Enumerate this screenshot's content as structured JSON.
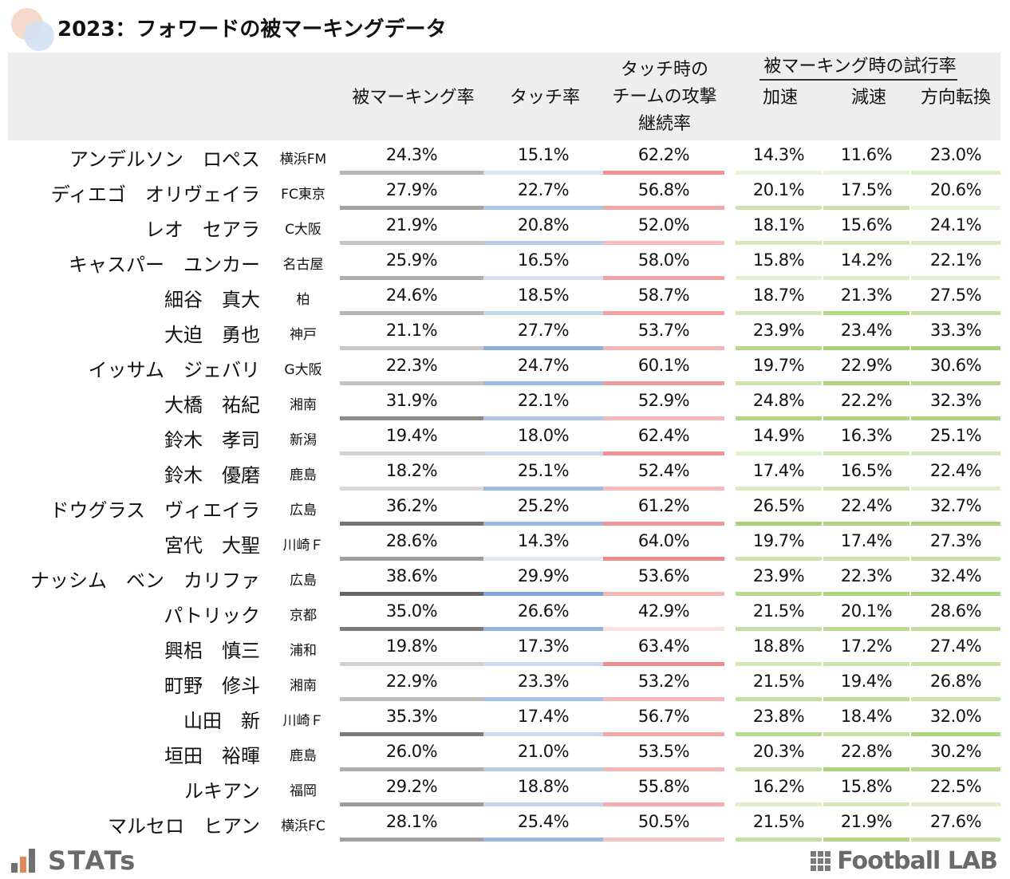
{
  "title": "2023：フォワードの被マーキングデータ",
  "headers": {
    "marked_rate": "被マーキング率",
    "touch_rate": "タッチ率",
    "continuation": [
      "タッチ時の",
      "チームの攻撃",
      "継続率"
    ],
    "group_label": "被マーキング時の試行率",
    "accel": "加速",
    "decel": "減速",
    "turn": "方向転換"
  },
  "colors": {
    "marked": "#666666",
    "touch": "#7ea6d8",
    "continuation": "#ef8a8a",
    "attempt": "#a9d177",
    "header_bg": "#eeeeee"
  },
  "chart_data": {
    "type": "table",
    "title": "2023：フォワードの被マーキングデータ",
    "columns": [
      "被マーキング率",
      "タッチ率",
      "タッチ時のチームの攻撃継続率",
      "加速",
      "減速",
      "方向転換"
    ],
    "rows": [
      {
        "name": "アンデルソン　ロペス",
        "team": "横浜FM",
        "values": [
          "24.3%",
          "15.1%",
          "62.2%",
          "14.3%",
          "11.6%",
          "23.0%"
        ]
      },
      {
        "name": "ディエゴ　オリヴェイラ",
        "team": "FC東京",
        "values": [
          "27.9%",
          "22.7%",
          "56.8%",
          "20.1%",
          "17.5%",
          "20.6%"
        ]
      },
      {
        "name": "レオ　セアラ",
        "team": "C大阪",
        "values": [
          "21.9%",
          "20.8%",
          "52.0%",
          "18.1%",
          "15.6%",
          "24.1%"
        ]
      },
      {
        "name": "キャスパー　ユンカー",
        "team": "名古屋",
        "values": [
          "25.9%",
          "16.5%",
          "58.0%",
          "15.8%",
          "14.2%",
          "22.1%"
        ]
      },
      {
        "name": "細谷　真大",
        "team": "柏",
        "values": [
          "24.6%",
          "18.5%",
          "58.7%",
          "18.7%",
          "21.3%",
          "27.5%"
        ]
      },
      {
        "name": "大迫　勇也",
        "team": "神戸",
        "values": [
          "21.1%",
          "27.7%",
          "53.7%",
          "23.9%",
          "23.4%",
          "33.3%"
        ]
      },
      {
        "name": "イッサム　ジェバリ",
        "team": "G大阪",
        "values": [
          "22.3%",
          "24.7%",
          "60.1%",
          "19.7%",
          "22.9%",
          "30.6%"
        ]
      },
      {
        "name": "大橋　祐紀",
        "team": "湘南",
        "values": [
          "31.9%",
          "22.1%",
          "52.9%",
          "24.8%",
          "22.2%",
          "32.3%"
        ]
      },
      {
        "name": "鈴木　孝司",
        "team": "新潟",
        "values": [
          "19.4%",
          "18.0%",
          "62.4%",
          "14.9%",
          "16.3%",
          "25.1%"
        ]
      },
      {
        "name": "鈴木　優磨",
        "team": "鹿島",
        "values": [
          "18.2%",
          "25.1%",
          "52.4%",
          "17.4%",
          "16.5%",
          "22.4%"
        ]
      },
      {
        "name": "ドウグラス　ヴィエイラ",
        "team": "広島",
        "values": [
          "36.2%",
          "25.2%",
          "61.2%",
          "26.5%",
          "22.4%",
          "32.7%"
        ]
      },
      {
        "name": "宮代　大聖",
        "team": "川崎Ｆ",
        "values": [
          "28.6%",
          "14.3%",
          "64.0%",
          "19.7%",
          "17.4%",
          "27.3%"
        ]
      },
      {
        "name": "ナッシム　ベン　カリファ",
        "team": "広島",
        "values": [
          "38.6%",
          "29.9%",
          "53.6%",
          "23.9%",
          "22.3%",
          "32.4%"
        ]
      },
      {
        "name": "パトリック",
        "team": "京都",
        "values": [
          "35.0%",
          "26.6%",
          "42.9%",
          "21.5%",
          "20.1%",
          "28.6%"
        ]
      },
      {
        "name": "興梠　慎三",
        "team": "浦和",
        "values": [
          "19.8%",
          "17.3%",
          "63.4%",
          "18.8%",
          "17.2%",
          "27.4%"
        ]
      },
      {
        "name": "町野　修斗",
        "team": "湘南",
        "values": [
          "22.9%",
          "23.3%",
          "53.2%",
          "21.5%",
          "19.4%",
          "26.8%"
        ]
      },
      {
        "name": "山田　新",
        "team": "川崎Ｆ",
        "values": [
          "35.3%",
          "17.4%",
          "56.7%",
          "23.8%",
          "18.4%",
          "32.0%"
        ]
      },
      {
        "name": "垣田　裕暉",
        "team": "鹿島",
        "values": [
          "26.0%",
          "21.0%",
          "53.5%",
          "20.3%",
          "22.8%",
          "30.2%"
        ]
      },
      {
        "name": "ルキアン",
        "team": "福岡",
        "values": [
          "29.2%",
          "18.8%",
          "55.8%",
          "16.2%",
          "15.8%",
          "22.5%"
        ]
      },
      {
        "name": "マルセロ　ヒアン",
        "team": "横浜FC",
        "values": [
          "28.1%",
          "25.4%",
          "50.5%",
          "21.5%",
          "21.9%",
          "27.6%"
        ]
      }
    ]
  },
  "footer": {
    "left_logo": "STATs",
    "right_logo": "Football LAB"
  }
}
